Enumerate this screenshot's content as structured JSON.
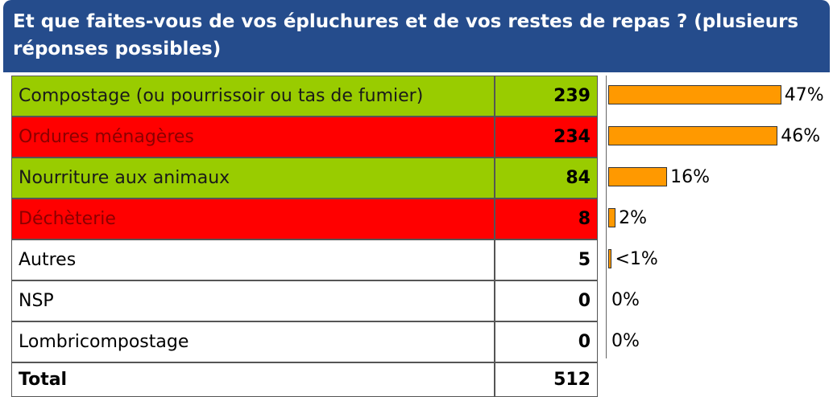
{
  "header": {
    "title": "Et que faites-vous de vos épluchures et de vos restes de repas ? (plusieurs réponses possibles)"
  },
  "table": {
    "rows": [
      {
        "label": "Compostage (ou pourrissoir ou tas de fumier)",
        "count": 239,
        "percent": 47,
        "percent_label": "47%",
        "fill": "#99cc00",
        "text_color": "#1a1a1a"
      },
      {
        "label": "Ordures ménagères",
        "count": 234,
        "percent": 46,
        "percent_label": "46%",
        "fill": "#ff0000",
        "text_color": "#8b0000"
      },
      {
        "label": "Nourriture aux animaux",
        "count": 84,
        "percent": 16,
        "percent_label": "16%",
        "fill": "#99cc00",
        "text_color": "#1a1a1a"
      },
      {
        "label": "Déchèterie",
        "count": 8,
        "percent": 2,
        "percent_label": "2%",
        "fill": "#ff0000",
        "text_color": "#8b0000"
      },
      {
        "label": "Autres",
        "count": 5,
        "percent": 0.98,
        "percent_label": "<1%",
        "fill": "#ffffff",
        "text_color": "#000000"
      },
      {
        "label": "NSP",
        "count": 0,
        "percent": 0,
        "percent_label": "0%",
        "fill": "#ffffff",
        "text_color": "#000000"
      },
      {
        "label": "Lombricompostage",
        "count": 0,
        "percent": 0,
        "percent_label": "0%",
        "fill": "#ffffff",
        "text_color": "#000000"
      }
    ],
    "total": {
      "label": "Total",
      "count": 512
    },
    "bar_color": "#ff9900"
  }
}
